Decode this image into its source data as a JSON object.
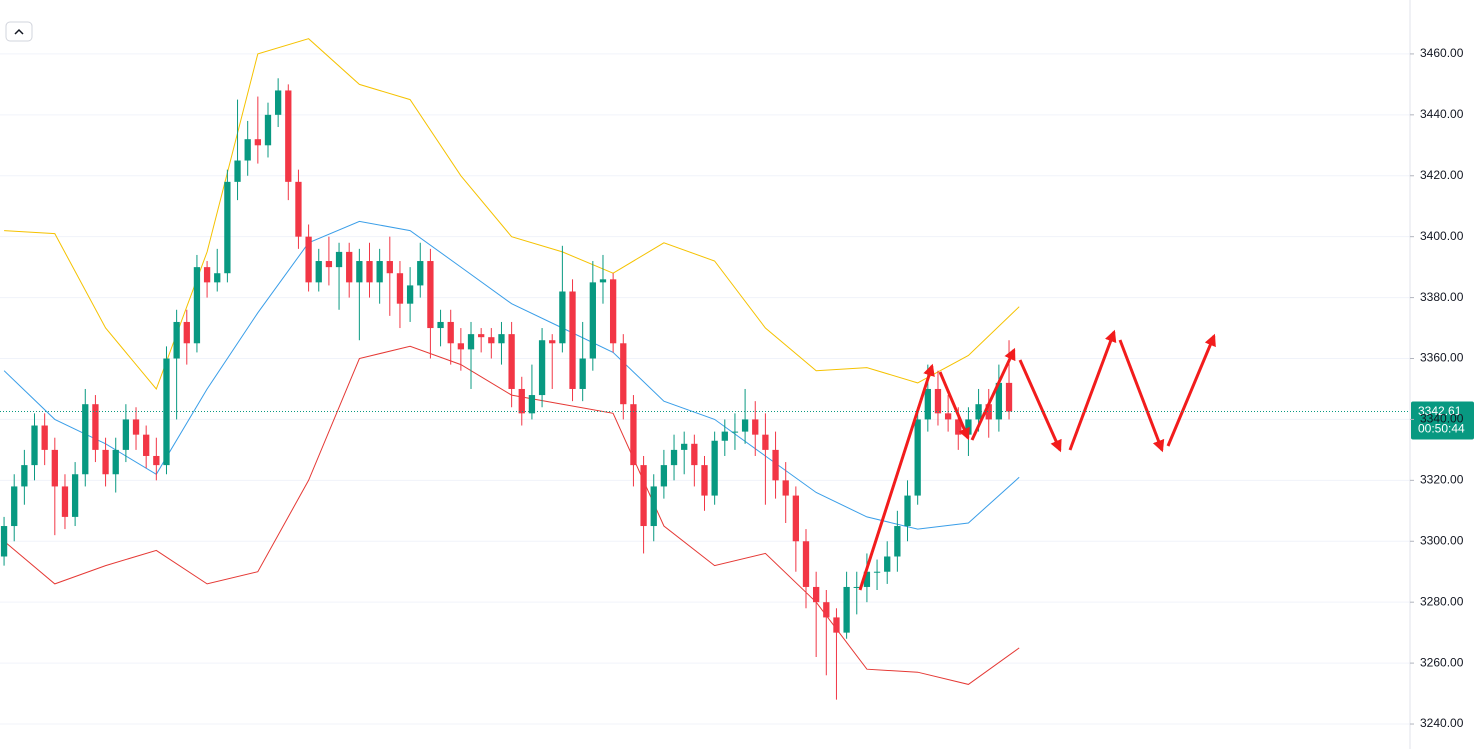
{
  "chart_data": {
    "type": "candlestick",
    "open": [
      3295,
      3305,
      3318,
      3325,
      3338,
      3330,
      3318,
      3308,
      3322,
      3345,
      3330,
      3322,
      3330,
      3340,
      3335,
      3328,
      3325,
      3360,
      3372,
      3365,
      3390,
      3385,
      3388,
      3418,
      3425,
      3432,
      3430,
      3440,
      3448,
      3418,
      3400,
      3385,
      3392,
      3390,
      3395,
      3385,
      3392,
      3385,
      3392,
      3388,
      3378,
      3384,
      3392,
      3370,
      3372,
      3365,
      3363,
      3368,
      3367,
      3365,
      3368,
      3350,
      3342,
      3348,
      3366,
      3365,
      3382,
      3350,
      3360,
      3385,
      3386,
      3365,
      3345,
      3325,
      3305,
      3318,
      3325,
      3330,
      3332,
      3325,
      3315,
      3333,
      3336,
      3336,
      3340,
      3335,
      3330,
      3320,
      3315,
      3300,
      3285,
      3280,
      3275,
      3270,
      3285,
      3285,
      3290,
      3290,
      3295,
      3305,
      3315,
      3340,
      3350,
      3342,
      3340,
      3335,
      3340,
      3345,
      3340,
      3352
    ],
    "high": [
      3308,
      3322,
      3330,
      3342,
      3342,
      3334,
      3322,
      3326,
      3350,
      3348,
      3334,
      3334,
      3345,
      3344,
      3338,
      3334,
      3364,
      3376,
      3376,
      3394,
      3392,
      3396,
      3422,
      3445,
      3438,
      3446,
      3444,
      3452,
      3450,
      3422,
      3404,
      3396,
      3400,
      3398,
      3398,
      3396,
      3398,
      3396,
      3400,
      3392,
      3390,
      3398,
      3396,
      3376,
      3376,
      3370,
      3372,
      3370,
      3370,
      3372,
      3372,
      3354,
      3358,
      3370,
      3368,
      3397,
      3386,
      3372,
      3392,
      3394,
      3388,
      3368,
      3348,
      3328,
      3322,
      3330,
      3335,
      3336,
      3335,
      3328,
      3336,
      3340,
      3342,
      3350,
      3346,
      3342,
      3336,
      3326,
      3318,
      3304,
      3290,
      3284,
      3278,
      3290,
      3290,
      3296,
      3294,
      3300,
      3310,
      3320,
      3344,
      3358,
      3356,
      3348,
      3344,
      3344,
      3350,
      3350,
      3358,
      3366
    ],
    "low": [
      3292,
      3300,
      3312,
      3320,
      3325,
      3302,
      3304,
      3305,
      3318,
      3326,
      3318,
      3316,
      3326,
      3330,
      3324,
      3320,
      3322,
      3340,
      3358,
      3362,
      3380,
      3382,
      3385,
      3412,
      3420,
      3424,
      3426,
      3436,
      3412,
      3396,
      3382,
      3382,
      3384,
      3376,
      3380,
      3366,
      3380,
      3378,
      3374,
      3370,
      3372,
      3380,
      3360,
      3364,
      3358,
      3356,
      3350,
      3362,
      3360,
      3358,
      3344,
      3338,
      3340,
      3344,
      3350,
      3362,
      3346,
      3346,
      3356,
      3378,
      3362,
      3340,
      3318,
      3296,
      3300,
      3314,
      3320,
      3322,
      3318,
      3310,
      3312,
      3328,
      3330,
      3332,
      3328,
      3312,
      3314,
      3306,
      3290,
      3278,
      3262,
      3256,
      3248,
      3268,
      3276,
      3280,
      3284,
      3286,
      3290,
      3300,
      3312,
      3336,
      3338,
      3336,
      3330,
      3328,
      3336,
      3334,
      3336,
      3340
    ],
    "close": [
      3305,
      3318,
      3325,
      3338,
      3330,
      3318,
      3308,
      3322,
      3345,
      3330,
      3322,
      3330,
      3340,
      3335,
      3328,
      3325,
      3360,
      3372,
      3365,
      3390,
      3385,
      3388,
      3418,
      3425,
      3432,
      3430,
      3440,
      3448,
      3418,
      3400,
      3385,
      3392,
      3390,
      3395,
      3385,
      3392,
      3385,
      3392,
      3388,
      3378,
      3384,
      3392,
      3370,
      3372,
      3365,
      3363,
      3368,
      3367,
      3365,
      3368,
      3350,
      3342,
      3348,
      3366,
      3365,
      3382,
      3350,
      3360,
      3385,
      3386,
      3365,
      3345,
      3325,
      3305,
      3318,
      3325,
      3330,
      3332,
      3325,
      3315,
      3333,
      3336,
      3336,
      3340,
      3335,
      3330,
      3320,
      3315,
      3300,
      3285,
      3280,
      3275,
      3270,
      3285,
      3285,
      3290,
      3290,
      3295,
      3305,
      3315,
      3340,
      3350,
      3342,
      3340,
      3335,
      3340,
      3345,
      3340,
      3352,
      3342.61
    ],
    "up_color": "#089981",
    "down_color": "#f23645",
    "bands": {
      "x": [
        0,
        5,
        10,
        15,
        20,
        25,
        30,
        35,
        40,
        45,
        50,
        55,
        60,
        65,
        70,
        75,
        80,
        85,
        90,
        95,
        100
      ],
      "upper": [
        3402,
        3401,
        3370,
        3350,
        3395,
        3460,
        3465,
        3450,
        3445,
        3420,
        3400,
        3395,
        3388,
        3398,
        3392,
        3370,
        3356,
        3357,
        3352,
        3361,
        3377
      ],
      "middle": [
        3356,
        3340,
        3332,
        3322,
        3350,
        3375,
        3398,
        3405,
        3402,
        3390,
        3378,
        3370,
        3362,
        3346,
        3340,
        3328,
        3316,
        3308,
        3304,
        3306,
        3321
      ],
      "lower": [
        3300,
        3286,
        3292,
        3297,
        3286,
        3290,
        3320,
        3360,
        3364,
        3358,
        3348,
        3345,
        3342,
        3305,
        3292,
        3296,
        3280,
        3258,
        3257,
        3253,
        3265
      ],
      "upper_color": "#f5c200",
      "middle_color": "#3a9ee8",
      "lower_color": "#e53935"
    },
    "xlim": [
      -0.4,
      138.5
    ],
    "ylim": [
      3231.8,
      3477.7
    ],
    "yticks": [
      {
        "value": 3240,
        "label": "3240.00"
      },
      {
        "value": 3260,
        "label": "3260.00"
      },
      {
        "value": 3280,
        "label": "3280.00"
      },
      {
        "value": 3300,
        "label": "3300.00"
      },
      {
        "value": 3320,
        "label": "3320.00"
      },
      {
        "value": 3340,
        "label": "3340.00"
      },
      {
        "value": 3360,
        "label": "3360.00"
      },
      {
        "value": 3380,
        "label": "3380.00"
      },
      {
        "value": 3400,
        "label": "3400.00"
      },
      {
        "value": 3420,
        "label": "3420.00"
      },
      {
        "value": 3440,
        "label": "3440.00"
      },
      {
        "value": 3460,
        "label": "3460.00"
      }
    ],
    "grid": true,
    "last_price": 3342.61,
    "countdown": "00:50:44"
  }
}
